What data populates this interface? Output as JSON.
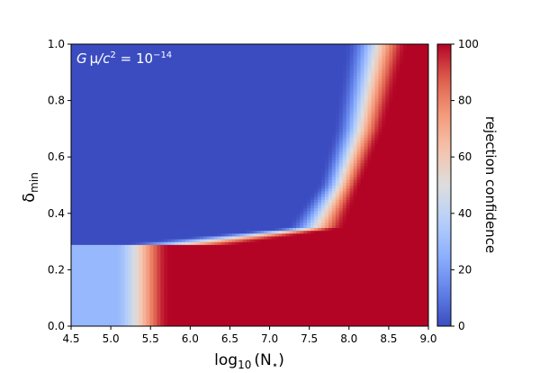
{
  "chart_data": {
    "type": "heatmap",
    "title": "",
    "xlabel_base": "log",
    "xlabel_sub": "10",
    "xlabel_arg": "(N",
    "xlabel_argsub": "⋆",
    "xlabel_close": ")",
    "ylabel_base": "δ",
    "ylabel_sub": "min",
    "xlim": [
      4.5,
      9.0
    ],
    "ylim": [
      0.0,
      1.0
    ],
    "x_ticks": [
      "4.5",
      "5.0",
      "5.5",
      "6.0",
      "6.5",
      "7.0",
      "7.5",
      "8.0",
      "8.5",
      "9.0"
    ],
    "y_ticks": [
      "0.0",
      "0.2",
      "0.4",
      "0.6",
      "0.8",
      "1.0"
    ],
    "colorbar": {
      "label": "rejection confidence",
      "range": [
        0,
        100
      ],
      "ticks": [
        "0",
        "20",
        "40",
        "60",
        "80",
        "100"
      ],
      "colormap": "coolwarm",
      "low_color": "#3b4cc0",
      "mid_color": "#dddddd",
      "high_color": "#b40426"
    },
    "annotation": {
      "lhs_a": "G",
      "lhs_b": "μ",
      "lhs_c": "/c",
      "lhs_c_sup": "2",
      "eq": " = 10",
      "exp": "−14"
    },
    "regions": {
      "lower_band_delta_max": 0.29,
      "lower_band_transition_log10N": [
        5.05,
        5.75
      ],
      "upper_region_transition_log10N_at_delta": [
        {
          "delta": 0.29,
          "from": 5.0,
          "to": 6.6
        },
        {
          "delta": 0.35,
          "from": 7.2,
          "to": 7.95
        },
        {
          "delta": 0.5,
          "from": 7.6,
          "to": 8.15
        },
        {
          "delta": 0.7,
          "from": 7.8,
          "to": 8.45
        },
        {
          "delta": 1.0,
          "from": 7.95,
          "to": 8.75
        }
      ]
    }
  }
}
